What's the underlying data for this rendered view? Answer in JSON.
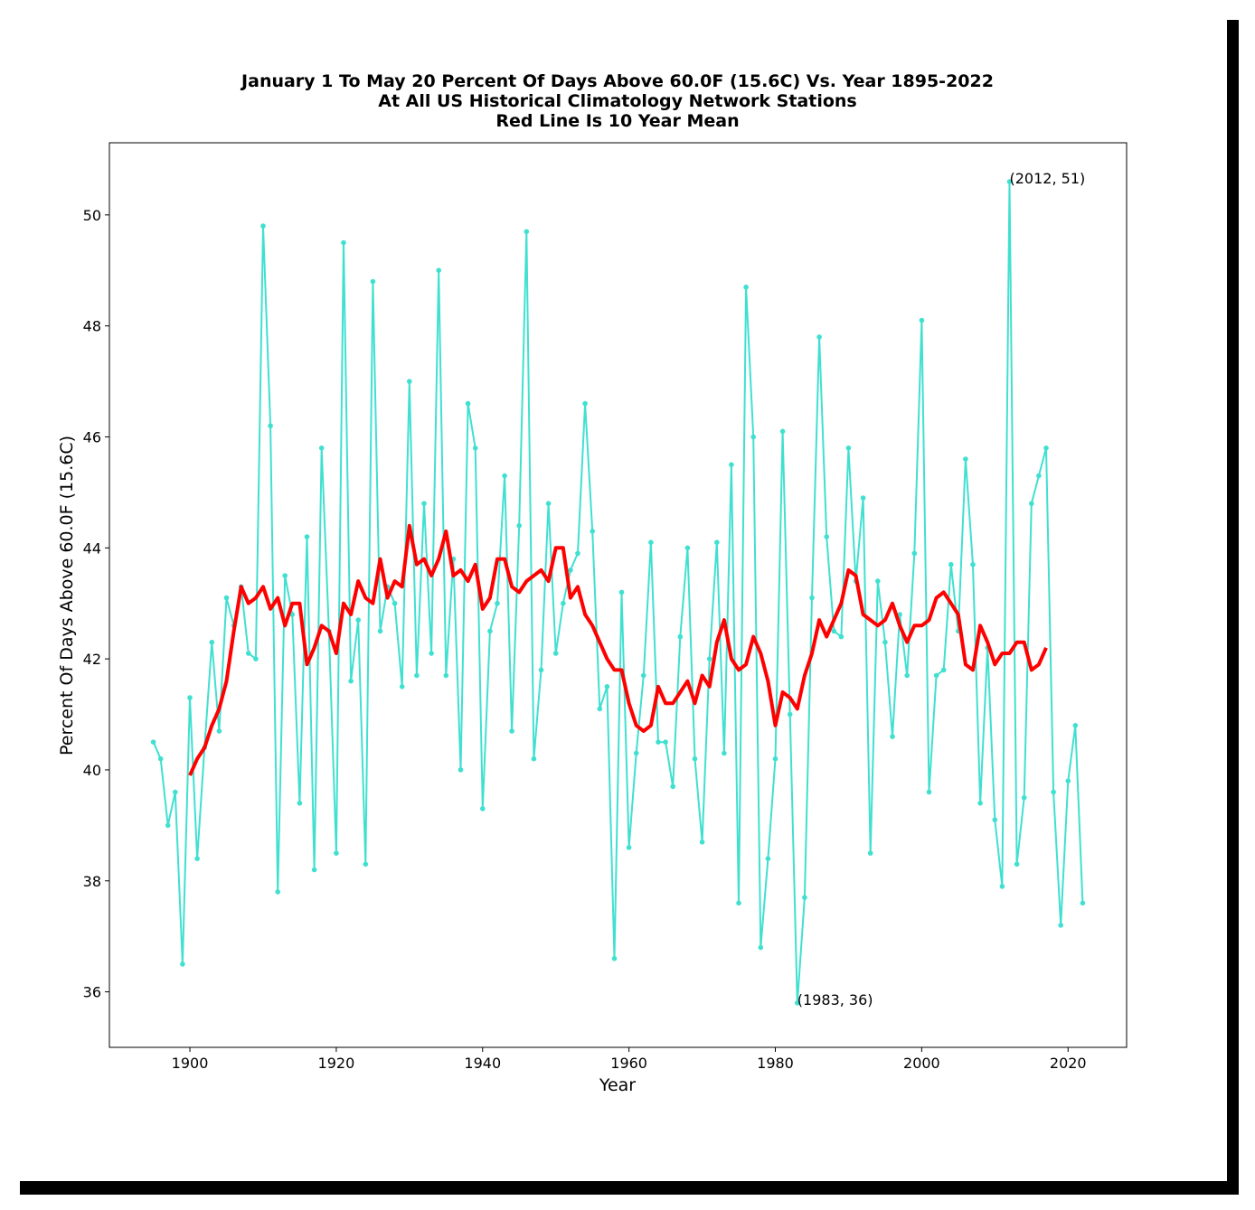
{
  "chart_data": {
    "type": "line",
    "title": [
      "January 1 To May 20 Percent Of Days Above 60.0F (15.6C) Vs. Year 1895-2022",
      "At All US Historical Climatology Network Stations",
      "Red Line Is 10 Year Mean"
    ],
    "xlabel": "Year",
    "ylabel": "Percent Of Days Above 60.0F (15.6C)",
    "xlim": [
      1889,
      2028
    ],
    "ylim": [
      35,
      51.3
    ],
    "xticks": [
      1900,
      1920,
      1940,
      1960,
      1980,
      2000,
      2020
    ],
    "yticks": [
      36,
      38,
      40,
      42,
      44,
      46,
      48,
      50
    ],
    "grid": false,
    "series": [
      {
        "color": "#40e0d0",
        "marker": "dot",
        "x": [
          1895,
          1896,
          1897,
          1898,
          1899,
          1900,
          1901,
          1902,
          1903,
          1904,
          1905,
          1906,
          1907,
          1908,
          1909,
          1910,
          1911,
          1912,
          1913,
          1914,
          1915,
          1916,
          1917,
          1918,
          1919,
          1920,
          1921,
          1922,
          1923,
          1924,
          1925,
          1926,
          1927,
          1928,
          1929,
          1930,
          1931,
          1932,
          1933,
          1934,
          1935,
          1936,
          1937,
          1938,
          1939,
          1940,
          1941,
          1942,
          1943,
          1944,
          1945,
          1946,
          1947,
          1948,
          1949,
          1950,
          1951,
          1952,
          1953,
          1954,
          1955,
          1956,
          1957,
          1958,
          1959,
          1960,
          1961,
          1962,
          1963,
          1964,
          1965,
          1966,
          1967,
          1968,
          1969,
          1970,
          1971,
          1972,
          1973,
          1974,
          1975,
          1976,
          1977,
          1978,
          1979,
          1980,
          1981,
          1982,
          1983,
          1984,
          1985,
          1986,
          1987,
          1988,
          1989,
          1990,
          1991,
          1992,
          1993,
          1994,
          1995,
          1996,
          1997,
          1998,
          1999,
          2000,
          2001,
          2002,
          2003,
          2004,
          2005,
          2006,
          2007,
          2008,
          2009,
          2010,
          2011,
          2012,
          2013,
          2014,
          2015,
          2016,
          2017,
          2018,
          2019,
          2020,
          2021,
          2022
        ],
        "y": [
          40.5,
          40.2,
          39.0,
          39.6,
          36.5,
          41.3,
          38.4,
          40.4,
          42.3,
          40.7,
          43.1,
          42.6,
          43.3,
          42.1,
          42.0,
          49.8,
          46.2,
          37.8,
          43.5,
          42.8,
          39.4,
          44.2,
          38.2,
          45.8,
          42.5,
          38.5,
          49.5,
          41.6,
          42.7,
          38.3,
          48.8,
          42.5,
          43.3,
          43.0,
          41.5,
          47.0,
          41.7,
          44.8,
          42.1,
          49.0,
          41.7,
          43.8,
          40.0,
          46.6,
          45.8,
          39.3,
          42.5,
          43.0,
          45.3,
          40.7,
          44.4,
          49.7,
          40.2,
          41.8,
          44.8,
          42.1,
          43.0,
          43.6,
          43.9,
          46.6,
          44.3,
          41.1,
          41.5,
          36.6,
          43.2,
          38.6,
          40.3,
          41.7,
          44.1,
          40.5,
          40.5,
          39.7,
          42.4,
          44.0,
          40.2,
          38.7,
          42.0,
          44.1,
          40.3,
          45.5,
          37.6,
          48.7,
          46.0,
          36.8,
          38.4,
          40.2,
          46.1,
          41.0,
          35.8,
          37.7,
          43.1,
          47.8,
          44.2,
          42.5,
          42.4,
          45.8,
          43.4,
          44.9,
          38.5,
          43.4,
          42.3,
          40.6,
          42.8,
          41.7,
          43.9,
          48.1,
          39.6,
          41.7,
          41.8,
          43.7,
          42.5,
          45.6,
          43.7,
          39.4,
          42.2,
          39.1,
          37.9,
          50.6,
          38.3,
          39.5,
          44.8,
          45.3,
          45.8,
          39.6,
          37.2,
          39.8,
          40.8,
          37.6
        ]
      },
      {
        "color": "#ff0000",
        "marker": "none",
        "x": [
          1900,
          1901,
          1902,
          1903,
          1904,
          1905,
          1906,
          1907,
          1908,
          1909,
          1910,
          1911,
          1912,
          1913,
          1914,
          1915,
          1916,
          1917,
          1918,
          1919,
          1920,
          1921,
          1922,
          1923,
          1924,
          1925,
          1926,
          1927,
          1928,
          1929,
          1930,
          1931,
          1932,
          1933,
          1934,
          1935,
          1936,
          1937,
          1938,
          1939,
          1940,
          1941,
          1942,
          1943,
          1944,
          1945,
          1946,
          1947,
          1948,
          1949,
          1950,
          1951,
          1952,
          1953,
          1954,
          1955,
          1956,
          1957,
          1958,
          1959,
          1960,
          1961,
          1962,
          1963,
          1964,
          1965,
          1966,
          1967,
          1968,
          1969,
          1970,
          1971,
          1972,
          1973,
          1974,
          1975,
          1976,
          1977,
          1978,
          1979,
          1980,
          1981,
          1982,
          1983,
          1984,
          1985,
          1986,
          1987,
          1988,
          1989,
          1990,
          1991,
          1992,
          1993,
          1994,
          1995,
          1996,
          1997,
          1998,
          1999,
          2000,
          2001,
          2002,
          2003,
          2004,
          2005,
          2006,
          2007,
          2008,
          2009,
          2010,
          2011,
          2012,
          2013,
          2014,
          2015,
          2016,
          2017
        ],
        "y": [
          39.9,
          40.2,
          40.4,
          40.8,
          41.1,
          41.6,
          42.5,
          43.3,
          43.0,
          43.1,
          43.3,
          42.9,
          43.1,
          42.6,
          43.0,
          43.0,
          41.9,
          42.2,
          42.6,
          42.5,
          42.1,
          43.0,
          42.8,
          43.4,
          43.1,
          43.0,
          43.8,
          43.1,
          43.4,
          43.3,
          44.4,
          43.7,
          43.8,
          43.5,
          43.8,
          44.3,
          43.5,
          43.6,
          43.4,
          43.7,
          42.9,
          43.1,
          43.8,
          43.8,
          43.3,
          43.2,
          43.4,
          43.5,
          43.6,
          43.4,
          44.0,
          44.0,
          43.1,
          43.3,
          42.8,
          42.6,
          42.3,
          42.0,
          41.8,
          41.8,
          41.2,
          40.8,
          40.7,
          40.8,
          41.5,
          41.2,
          41.2,
          41.4,
          41.6,
          41.2,
          41.7,
          41.5,
          42.3,
          42.7,
          42.0,
          41.8,
          41.9,
          42.4,
          42.1,
          41.6,
          40.8,
          41.4,
          41.3,
          41.1,
          41.7,
          42.1,
          42.7,
          42.4,
          42.7,
          43.0,
          43.6,
          43.5,
          42.8,
          42.7,
          42.6,
          42.7,
          43.0,
          42.6,
          42.3,
          42.6,
          42.6,
          42.7,
          43.1,
          43.2,
          43.0,
          42.8,
          41.9,
          41.8,
          42.6,
          42.3,
          41.9,
          42.1,
          42.1,
          42.3,
          42.3,
          41.8,
          41.9,
          42.2
        ]
      }
    ],
    "annotations": [
      {
        "text": "(2012, 51)",
        "x": 2012,
        "y": 50.6
      },
      {
        "text": "(1983, 36)",
        "x": 1983,
        "y": 35.8
      }
    ]
  }
}
